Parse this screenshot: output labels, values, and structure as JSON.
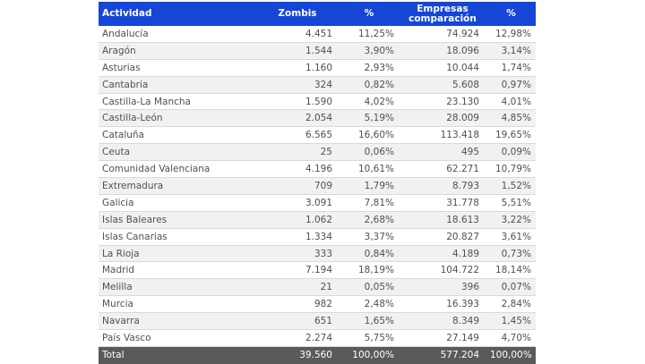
{
  "table": {
    "headers": [
      "Actividad",
      "Zombis",
      "%",
      "Empresas comparación",
      "%"
    ],
    "header_lines": {
      "col4_line1": "Empresas",
      "col4_line2": "comparación"
    },
    "rows": [
      [
        "Andalucía",
        "4.451",
        "11,25%",
        "74.924",
        "12,98%"
      ],
      [
        "Aragón",
        "1.544",
        "3,90%",
        "18.096",
        "3,14%"
      ],
      [
        "Asturias",
        "1.160",
        "2,93%",
        "10.044",
        "1,74%"
      ],
      [
        "Cantabria",
        "324",
        "0,82%",
        "5.608",
        "0,97%"
      ],
      [
        "Castilla-La Mancha",
        "1.590",
        "4,02%",
        "23.130",
        "4,01%"
      ],
      [
        "Castilla-León",
        "2.054",
        "5,19%",
        "28.009",
        "4,85%"
      ],
      [
        "Cataluña",
        "6.565",
        "16,60%",
        "113.418",
        "19,65%"
      ],
      [
        "Ceuta",
        "25",
        "0,06%",
        "495",
        "0,09%"
      ],
      [
        "Comunidad Valenciana",
        "4.196",
        "10,61%",
        "62.271",
        "10,79%"
      ],
      [
        "Extremadura",
        "709",
        "1,79%",
        "8.793",
        "1,52%"
      ],
      [
        "Galicia",
        "3.091",
        "7,81%",
        "31.778",
        "5,51%"
      ],
      [
        "Islas Baleares",
        "1.062",
        "2,68%",
        "18.613",
        "3,22%"
      ],
      [
        "Islas Canarias",
        "1.334",
        "3,37%",
        "20.827",
        "3,61%"
      ],
      [
        "La Rioja",
        "333",
        "0,84%",
        "4.189",
        "0,73%"
      ],
      [
        "Madrid",
        "7.194",
        "18,19%",
        "104.722",
        "18,14%"
      ],
      [
        "Melilla",
        "21",
        "0,05%",
        "396",
        "0,07%"
      ],
      [
        "Murcia",
        "982",
        "2,48%",
        "16.393",
        "2,84%"
      ],
      [
        "Navarra",
        "651",
        "1,65%",
        "8.349",
        "1,45%"
      ],
      [
        "País Vasco",
        "2.274",
        "5,75%",
        "27.149",
        "4,70%"
      ]
    ],
    "total": [
      "Total",
      "39.560",
      "100,00%",
      "577.204",
      "100,00%"
    ]
  },
  "colors": {
    "header_bg": "#1646d6",
    "total_bg": "#5a5a5a",
    "stripe_bg": "#f1f1f1"
  }
}
